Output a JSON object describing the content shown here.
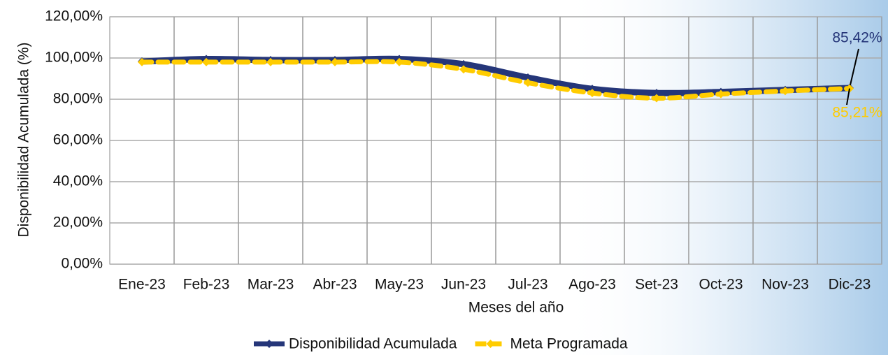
{
  "chart_data": {
    "type": "line",
    "x_label": "Meses del año",
    "y_label": "Disponibilidad Acumulada (%)",
    "categories": [
      "Ene-23",
      "Feb-23",
      "Mar-23",
      "Abr-23",
      "May-23",
      "Jun-23",
      "Jul-23",
      "Ago-23",
      "Set-23",
      "Oct-23",
      "Nov-23",
      "Dic-23"
    ],
    "series": [
      {
        "name": "Disponibilidad Acumulada",
        "color": "#253679",
        "values": [
          98.3,
          99.5,
          99.0,
          99.0,
          99.5,
          97.0,
          90.5,
          85.0,
          83.0,
          83.5,
          84.5,
          85.42
        ],
        "value_labels": [
          null,
          null,
          null,
          null,
          null,
          null,
          null,
          null,
          null,
          null,
          null,
          "85,42%"
        ]
      },
      {
        "name": "Meta Programada",
        "color": "#ffcc00",
        "values": [
          98.0,
          98.0,
          98.0,
          98.0,
          98.0,
          94.5,
          88.0,
          83.0,
          80.5,
          82.5,
          84.0,
          85.21
        ],
        "value_labels": [
          null,
          null,
          null,
          null,
          null,
          null,
          null,
          null,
          null,
          null,
          null,
          "85,21%"
        ]
      }
    ],
    "ylim": [
      0,
      120
    ],
    "yticks": [
      {
        "value": 0,
        "label": "0,00%"
      },
      {
        "value": 20,
        "label": "20,00%"
      },
      {
        "value": 40,
        "label": "40,00%"
      },
      {
        "value": 60,
        "label": "60,00%"
      },
      {
        "value": 80,
        "label": "80,00%"
      },
      {
        "value": 100,
        "label": "100,00%"
      },
      {
        "value": 120,
        "label": "120,00%"
      }
    ],
    "grid": true,
    "legend": "bottom"
  }
}
